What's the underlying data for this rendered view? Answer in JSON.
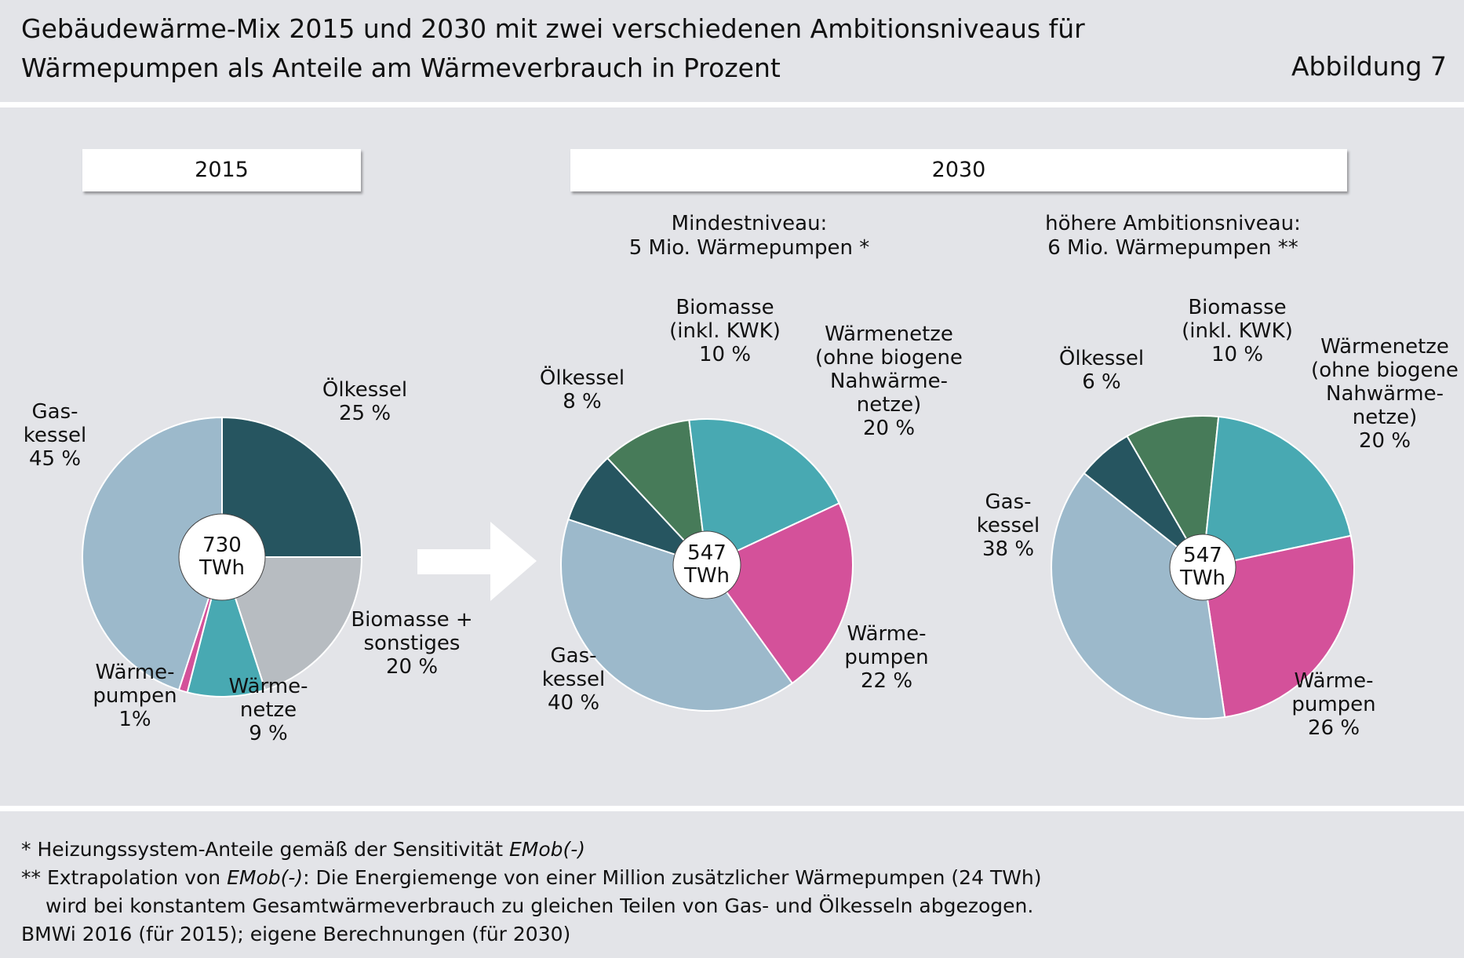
{
  "header": {
    "title_line1": "Gebäudewärme-Mix 2015 und 2030 mit zwei verschiedenen Ambitionsniveaus für",
    "title_line2": "Wärmepumpen als Anteile am Wärmeverbrauch in Prozent",
    "figure_label": "Abbildung 7"
  },
  "year_boxes": {
    "left": "2015",
    "right": "2030"
  },
  "subheads": {
    "mid_line1": "Mindestniveau:",
    "mid_line2": "5 Mio. Wärmepumpen *",
    "right_line1": "höhere Ambitionsniveau:",
    "right_line2": "6 Mio. Wärmepumpen **"
  },
  "colors": {
    "oelkessel": "#265560",
    "biomasse": "#477b59",
    "waermenetze": "#48a9b2",
    "waermepumpen": "#d4519a",
    "gaskessel": "#9cb9cb",
    "biomasse_sonstiges": "#b7bcc1",
    "background": "#e3e4e8"
  },
  "chart_data": [
    {
      "type": "pie",
      "center_label": [
        "730",
        "TWh"
      ],
      "slices": [
        {
          "key": "oelkessel",
          "label": [
            "Ölkessel",
            "25 %"
          ],
          "value": 25
        },
        {
          "key": "biomasse_sonstiges",
          "label": [
            "Biomasse +",
            "sonstiges",
            "20 %"
          ],
          "value": 20
        },
        {
          "key": "waermenetze",
          "label": [
            "Wärme-",
            "netze",
            "9 %"
          ],
          "value": 9
        },
        {
          "key": "waermepumpen",
          "label": [
            "Wärme-",
            "pumpen",
            "1%"
          ],
          "value": 1
        },
        {
          "key": "gaskessel",
          "label": [
            "Gas-",
            "kessel",
            "45 %"
          ],
          "value": 45
        }
      ]
    },
    {
      "type": "pie",
      "center_label": [
        "547",
        "TWh"
      ],
      "slices": [
        {
          "key": "biomasse",
          "label": [
            "Biomasse",
            "(inkl. KWK)",
            "10 %"
          ],
          "value": 10
        },
        {
          "key": "waermenetze",
          "label": [
            "Wärmenetze",
            "(ohne biogene",
            "Nahwärme-",
            "netze)",
            "20 %"
          ],
          "value": 20
        },
        {
          "key": "waermepumpen",
          "label": [
            "Wärme-",
            "pumpen",
            "22 %"
          ],
          "value": 22
        },
        {
          "key": "gaskessel",
          "label": [
            "Gas-",
            "kessel",
            "40 %"
          ],
          "value": 40
        },
        {
          "key": "oelkessel",
          "label": [
            "Ölkessel",
            "8 %"
          ],
          "value": 8
        }
      ]
    },
    {
      "type": "pie",
      "center_label": [
        "547",
        "TWh"
      ],
      "slices": [
        {
          "key": "biomasse",
          "label": [
            "Biomasse",
            "(inkl. KWK)",
            "10 %"
          ],
          "value": 10
        },
        {
          "key": "waermenetze",
          "label": [
            "Wärmenetze",
            "(ohne biogene",
            "Nahwärme-",
            "netze)",
            "20 %"
          ],
          "value": 20
        },
        {
          "key": "waermepumpen",
          "label": [
            "Wärme-",
            "pumpen",
            "26 %"
          ],
          "value": 26
        },
        {
          "key": "gaskessel",
          "label": [
            "Gas-",
            "kessel",
            "38 %"
          ],
          "value": 38
        },
        {
          "key": "oelkessel",
          "label": [
            "Ölkessel",
            "6 %"
          ],
          "value": 6
        }
      ]
    }
  ],
  "footnotes": {
    "line1_prefix": "* Heizungssystem-Anteile gemäß der Sensitivität ",
    "line1_italic": "EMob(-)",
    "line2_prefix": "** Extrapolation von ",
    "line2_italic": "EMob(-)",
    "line2_rest": ": Die Energiemenge von einer Million zusätzlicher Wärmepumpen (24 TWh)",
    "line3": "wird bei konstantem Gesamtwärmeverbrauch zu gleichen Teilen von Gas- und Ölkesseln abgezogen.",
    "line4": "BMWi 2016 (für 2015); eigene Berechnungen (für 2030)"
  }
}
